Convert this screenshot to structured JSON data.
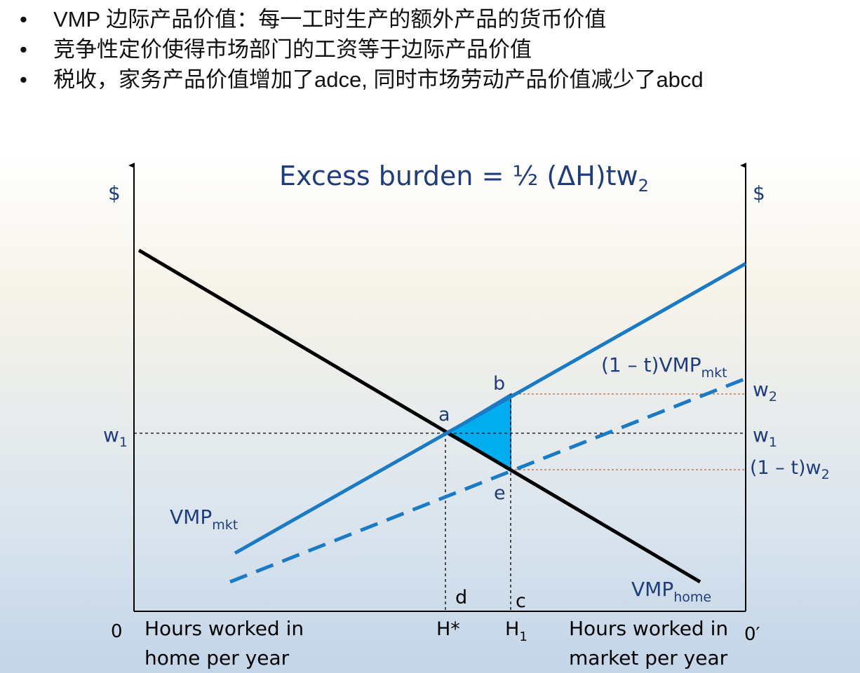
{
  "bullets": [
    "VMP 边际产品价值：每一工时生产的额外产品的货币价值",
    "竞争性定价使得市场部门的工资等于边际产品价值",
    "税收，家务产品价值增加了adce, 同时市场劳动产品价值减少了abcd"
  ],
  "bullet_symbol": "•",
  "diagram": {
    "title_main": "Excess burden = ½ (ΔH)tw",
    "title_sub": "2",
    "y_left_label": "$",
    "y_right_label": "$",
    "origin_left": "0",
    "origin_right": "0′",
    "x_left_label_line1": "Hours worked in",
    "x_left_label_line2": "home per year",
    "x_right_label_line1": "Hours worked in",
    "x_right_label_line2": "market per year",
    "tick_hstar": "H*",
    "tick_h1": "H",
    "tick_h1_sub": "1",
    "w1_left": "w",
    "w1_left_sub": "1",
    "w1_right": "w",
    "w1_right_sub": "1",
    "w2_right": "w",
    "w2_right_sub": "2",
    "one_minus_t_w2": "(1 – t)w",
    "one_minus_t_w2_sub": "2",
    "point_a": "a",
    "point_b": "b",
    "point_c": "c",
    "point_d": "d",
    "point_e": "e",
    "vmp_mkt_label": "VMP",
    "vmp_mkt_sub": "mkt",
    "vmp_home_label": "VMP",
    "vmp_home_sub": "home",
    "taxed_vmp_label": "(1 – t)VMP",
    "taxed_vmp_sub": "mkt",
    "colors": {
      "blue_line": "#1a7ac3",
      "label_blue": "#1f3d7a",
      "triangle_fill": "#00aef0",
      "ref_line_orange": "#c0622d",
      "black_line": "#000000"
    }
  }
}
